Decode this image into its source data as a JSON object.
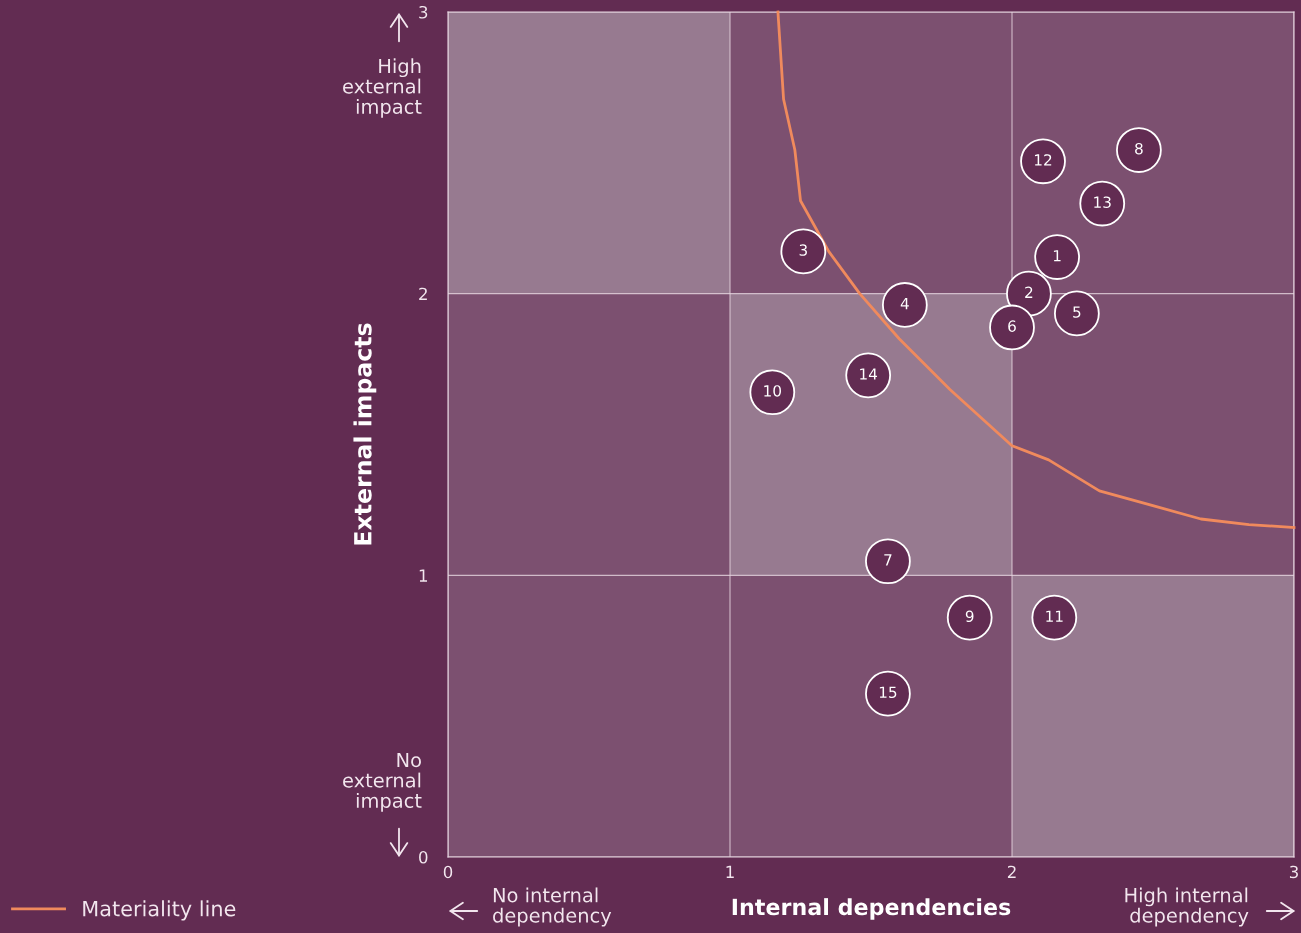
{
  "chart_data": {
    "type": "scatter",
    "xlabel": "Internal dependencies",
    "ylabel": "External impacts",
    "xlim": [
      0,
      3
    ],
    "ylim": [
      0,
      3
    ],
    "xticks": [
      0,
      1,
      2,
      3
    ],
    "yticks": [
      0,
      1,
      2,
      3
    ],
    "grid": true,
    "legend": "bottom left",
    "annotations": [
      "High\nexternal\nimpact",
      "No\nexternal\nimpact",
      "No internal\ndependency",
      "High internal\ndependency",
      {
        "text": "1",
        "x": 2.16,
        "y": 2.13
      },
      {
        "text": "2",
        "x": 2.06,
        "y": 2.0
      },
      {
        "text": "3",
        "x": 1.26,
        "y": 2.15
      },
      {
        "text": "4",
        "x": 1.62,
        "y": 1.96
      },
      {
        "text": "5",
        "x": 2.23,
        "y": 1.93
      },
      {
        "text": "6",
        "x": 2.0,
        "y": 1.88
      },
      {
        "text": "7",
        "x": 1.56,
        "y": 1.05
      },
      {
        "text": "8",
        "x": 2.45,
        "y": 2.51
      },
      {
        "text": "9",
        "x": 1.85,
        "y": 0.85
      },
      {
        "text": "10",
        "x": 1.15,
        "y": 1.65
      },
      {
        "text": "11",
        "x": 2.15,
        "y": 0.85
      },
      {
        "text": "12",
        "x": 2.11,
        "y": 2.47
      },
      {
        "text": "13",
        "x": 2.32,
        "y": 2.32
      },
      {
        "text": "14",
        "x": 1.49,
        "y": 1.71
      },
      {
        "text": "15",
        "x": 1.56,
        "y": 0.58
      }
    ],
    "series": [
      {
        "color": "#622c52",
        "marker": "circle",
        "x": [
          2.16,
          2.06,
          1.26,
          1.62,
          2.23,
          2.0,
          1.56,
          2.45,
          1.85,
          1.15,
          2.15,
          2.11,
          2.32,
          1.49,
          1.56
        ],
        "values": [
          2.13,
          2.0,
          2.15,
          1.96,
          1.93,
          1.88,
          1.05,
          2.51,
          0.85,
          1.65,
          0.85,
          2.47,
          2.32,
          1.71,
          0.58
        ]
      },
      {
        "type": "line",
        "name": "Materiality line",
        "color": "#f08a5d",
        "x": [
          1.17,
          1.19,
          1.23,
          1.25,
          1.35,
          1.46,
          1.6,
          1.78,
          2.0,
          2.13,
          2.31,
          2.49,
          2.67,
          2.84,
          3.0
        ],
        "values": [
          3.0,
          2.69,
          2.51,
          2.33,
          2.15,
          2.0,
          1.84,
          1.66,
          1.46,
          1.41,
          1.3,
          1.25,
          1.2,
          1.18,
          1.17
        ]
      }
    ]
  }
}
